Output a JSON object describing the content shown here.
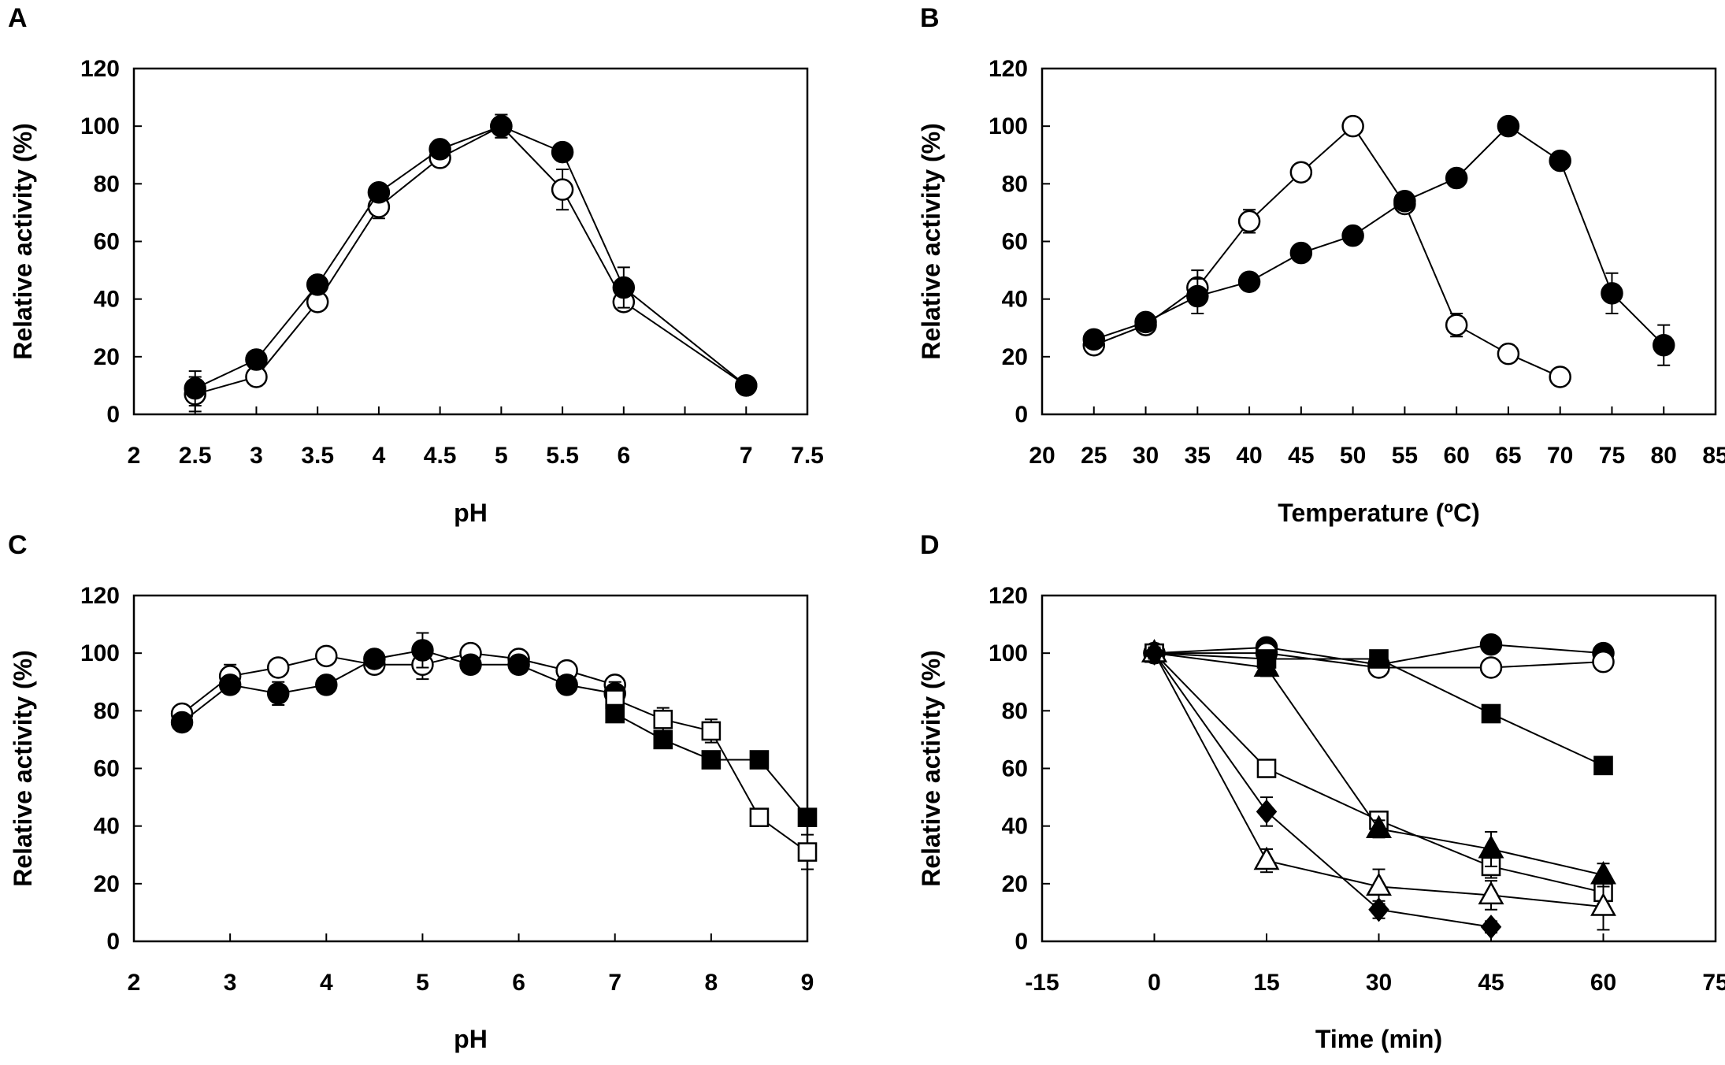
{
  "chart_data": [
    {
      "id": "A",
      "type": "scatter",
      "panel_letter": "A",
      "xlabel": "pH",
      "ylabel": "Relative activity (%)",
      "xlim": [
        2,
        7.5
      ],
      "ylim": [
        0,
        120
      ],
      "xticks": [
        2,
        2.5,
        3,
        3.5,
        4,
        4.5,
        5,
        5.5,
        6,
        6.5,
        7,
        7.5
      ],
      "xtick_labels": [
        "2",
        "2.5",
        "3",
        "3.5",
        "4",
        "4.5",
        "5",
        "5.5",
        "6",
        "7",
        "7.5"
      ],
      "xtick_label_values": [
        2,
        2.5,
        3,
        3.5,
        4,
        4.5,
        5,
        5.5,
        6,
        7,
        7.5
      ],
      "yticks": [
        0,
        20,
        40,
        60,
        80,
        100,
        120
      ],
      "ytick_labels": [
        "0",
        "20",
        "40",
        "60",
        "80",
        "100",
        "120"
      ],
      "series": [
        {
          "name": "open circle",
          "marker": "circle",
          "filled": false,
          "x": [
            2.5,
            3,
            3.5,
            4,
            4.5,
            5,
            5.5,
            6,
            7
          ],
          "y": [
            7,
            13,
            39,
            72,
            89,
            100,
            78,
            39,
            10
          ],
          "err": [
            6,
            3,
            3,
            4,
            3,
            4,
            7,
            3,
            2
          ]
        },
        {
          "name": "filled circle",
          "marker": "circle",
          "filled": true,
          "x": [
            2.5,
            3,
            3.5,
            4,
            4.5,
            5,
            5.5,
            6,
            7
          ],
          "y": [
            9,
            19,
            45,
            77,
            92,
            100,
            91,
            44,
            10
          ],
          "err": [
            6,
            3,
            3,
            3,
            3,
            4,
            3,
            7,
            2
          ]
        }
      ]
    },
    {
      "id": "B",
      "type": "scatter",
      "panel_letter": "B",
      "xlabel": "Temperature (ºC)",
      "ylabel": "Relative activity (%)",
      "xlim": [
        20,
        85
      ],
      "ylim": [
        0,
        120
      ],
      "xticks": [
        20,
        25,
        30,
        35,
        40,
        45,
        50,
        55,
        60,
        65,
        70,
        75,
        80,
        85
      ],
      "xtick_labels": [
        "20",
        "25",
        "30",
        "35",
        "40",
        "45",
        "50",
        "55",
        "60",
        "65",
        "70",
        "75",
        "80",
        "85"
      ],
      "xtick_label_values": [
        20,
        25,
        30,
        35,
        40,
        45,
        50,
        55,
        60,
        65,
        70,
        75,
        80,
        85
      ],
      "yticks": [
        0,
        20,
        40,
        60,
        80,
        100,
        120
      ],
      "ytick_labels": [
        "0",
        "20",
        "40",
        "60",
        "80",
        "100",
        "120"
      ],
      "series": [
        {
          "name": "open circle",
          "marker": "circle",
          "filled": false,
          "x": [
            25,
            30,
            35,
            40,
            45,
            50,
            55,
            60,
            65,
            70
          ],
          "y": [
            24,
            31,
            44,
            67,
            84,
            100,
            73,
            31,
            21,
            13
          ],
          "err": [
            3,
            2,
            6,
            4,
            3,
            3,
            3,
            4,
            3,
            3
          ]
        },
        {
          "name": "filled circle",
          "marker": "circle",
          "filled": true,
          "x": [
            25,
            30,
            35,
            40,
            45,
            50,
            55,
            60,
            65,
            70,
            75,
            80
          ],
          "y": [
            26,
            32,
            41,
            46,
            56,
            62,
            74,
            82,
            100,
            88,
            42,
            24
          ],
          "err": [
            3,
            2,
            6,
            3,
            3,
            3,
            3,
            3,
            2,
            3,
            7,
            7
          ]
        }
      ]
    },
    {
      "id": "C",
      "type": "scatter",
      "panel_letter": "C",
      "xlabel": "pH",
      "ylabel": "Relative activity (%)",
      "xlim": [
        2,
        9
      ],
      "ylim": [
        0,
        120
      ],
      "xticks": [
        2,
        3,
        4,
        5,
        6,
        7,
        8,
        9
      ],
      "xtick_labels": [
        "2",
        "3",
        "4",
        "5",
        "6",
        "7",
        "8",
        "9"
      ],
      "xtick_label_values": [
        2,
        3,
        4,
        5,
        6,
        7,
        8,
        9
      ],
      "yticks": [
        0,
        20,
        40,
        60,
        80,
        100,
        120
      ],
      "ytick_labels": [
        "0",
        "20",
        "40",
        "60",
        "80",
        "100",
        "120"
      ],
      "series": [
        {
          "name": "open circle",
          "marker": "circle",
          "filled": false,
          "x": [
            2.5,
            3,
            3.5,
            4,
            4.5,
            5,
            5.5,
            6,
            6.5,
            7
          ],
          "y": [
            79,
            92,
            95,
            99,
            96,
            96,
            100,
            98,
            94,
            89
          ],
          "err": [
            3,
            4,
            3,
            3,
            3,
            5,
            3,
            3,
            3,
            3
          ]
        },
        {
          "name": "filled circle",
          "marker": "circle",
          "filled": true,
          "x": [
            2.5,
            3,
            3.5,
            4,
            4.5,
            5,
            5.5,
            6,
            6.5,
            7
          ],
          "y": [
            76,
            89,
            86,
            89,
            98,
            101,
            96,
            96,
            89,
            86
          ],
          "err": [
            3,
            3,
            4,
            3,
            3,
            6,
            3,
            3,
            3,
            4
          ]
        },
        {
          "name": "open square",
          "marker": "square",
          "filled": false,
          "x": [
            7,
            7.5,
            8,
            8.5,
            9
          ],
          "y": [
            84,
            77,
            73,
            43,
            31
          ],
          "err": [
            3,
            4,
            4,
            3,
            6
          ]
        },
        {
          "name": "filled square",
          "marker": "square",
          "filled": true,
          "x": [
            7,
            7.5,
            8,
            8.5,
            9
          ],
          "y": [
            79,
            70,
            63,
            63,
            43
          ],
          "err": [
            3,
            3,
            3,
            3,
            2
          ]
        }
      ]
    },
    {
      "id": "D",
      "type": "scatter",
      "panel_letter": "D",
      "xlabel": "Time (min)",
      "ylabel": "Relative activity (%)",
      "xlim": [
        -15,
        75
      ],
      "ylim": [
        0,
        120
      ],
      "xticks": [
        -15,
        0,
        15,
        30,
        45,
        60,
        75
      ],
      "xtick_labels": [
        "-15",
        "0",
        "15",
        "30",
        "45",
        "60",
        "75"
      ],
      "xtick_label_values": [
        -15,
        0,
        15,
        30,
        45,
        60,
        75
      ],
      "yticks": [
        0,
        20,
        40,
        60,
        80,
        100,
        120
      ],
      "ytick_labels": [
        "0",
        "20",
        "40",
        "60",
        "80",
        "100",
        "120"
      ],
      "series": [
        {
          "name": "filled circle",
          "marker": "circle",
          "filled": true,
          "x": [
            0,
            15,
            30,
            45,
            60
          ],
          "y": [
            100,
            102,
            96,
            103,
            100
          ],
          "err": [
            2,
            3,
            2,
            2,
            2
          ]
        },
        {
          "name": "open circle",
          "marker": "circle",
          "filled": false,
          "x": [
            0,
            15,
            30,
            45,
            60
          ],
          "y": [
            100,
            100,
            95,
            95,
            97
          ],
          "err": [
            2,
            2,
            2,
            3,
            2
          ]
        },
        {
          "name": "filled square",
          "marker": "square",
          "filled": true,
          "x": [
            0,
            15,
            30,
            45,
            60
          ],
          "y": [
            100,
            98,
            98,
            79,
            61
          ],
          "err": [
            2,
            2,
            2,
            3,
            3
          ]
        },
        {
          "name": "open square",
          "marker": "square",
          "filled": false,
          "x": [
            0,
            15,
            30,
            45,
            60
          ],
          "y": [
            100,
            60,
            42,
            26,
            17
          ],
          "err": [
            2,
            2,
            2,
            4,
            4
          ]
        },
        {
          "name": "filled triangle",
          "marker": "triangle",
          "filled": true,
          "x": [
            0,
            15,
            30,
            45,
            60
          ],
          "y": [
            100,
            95,
            39,
            32,
            23
          ],
          "err": [
            2,
            3,
            3,
            6,
            4
          ]
        },
        {
          "name": "open triangle",
          "marker": "triangle",
          "filled": false,
          "x": [
            0,
            15,
            30,
            45,
            60
          ],
          "y": [
            100,
            28,
            19,
            16,
            12
          ],
          "err": [
            2,
            4,
            6,
            5,
            8
          ]
        },
        {
          "name": "filled diamond",
          "marker": "diamond",
          "filled": true,
          "x": [
            0,
            15,
            30,
            45
          ],
          "y": [
            100,
            45,
            11,
            5
          ],
          "err": [
            2,
            5,
            3,
            2
          ]
        }
      ]
    }
  ]
}
